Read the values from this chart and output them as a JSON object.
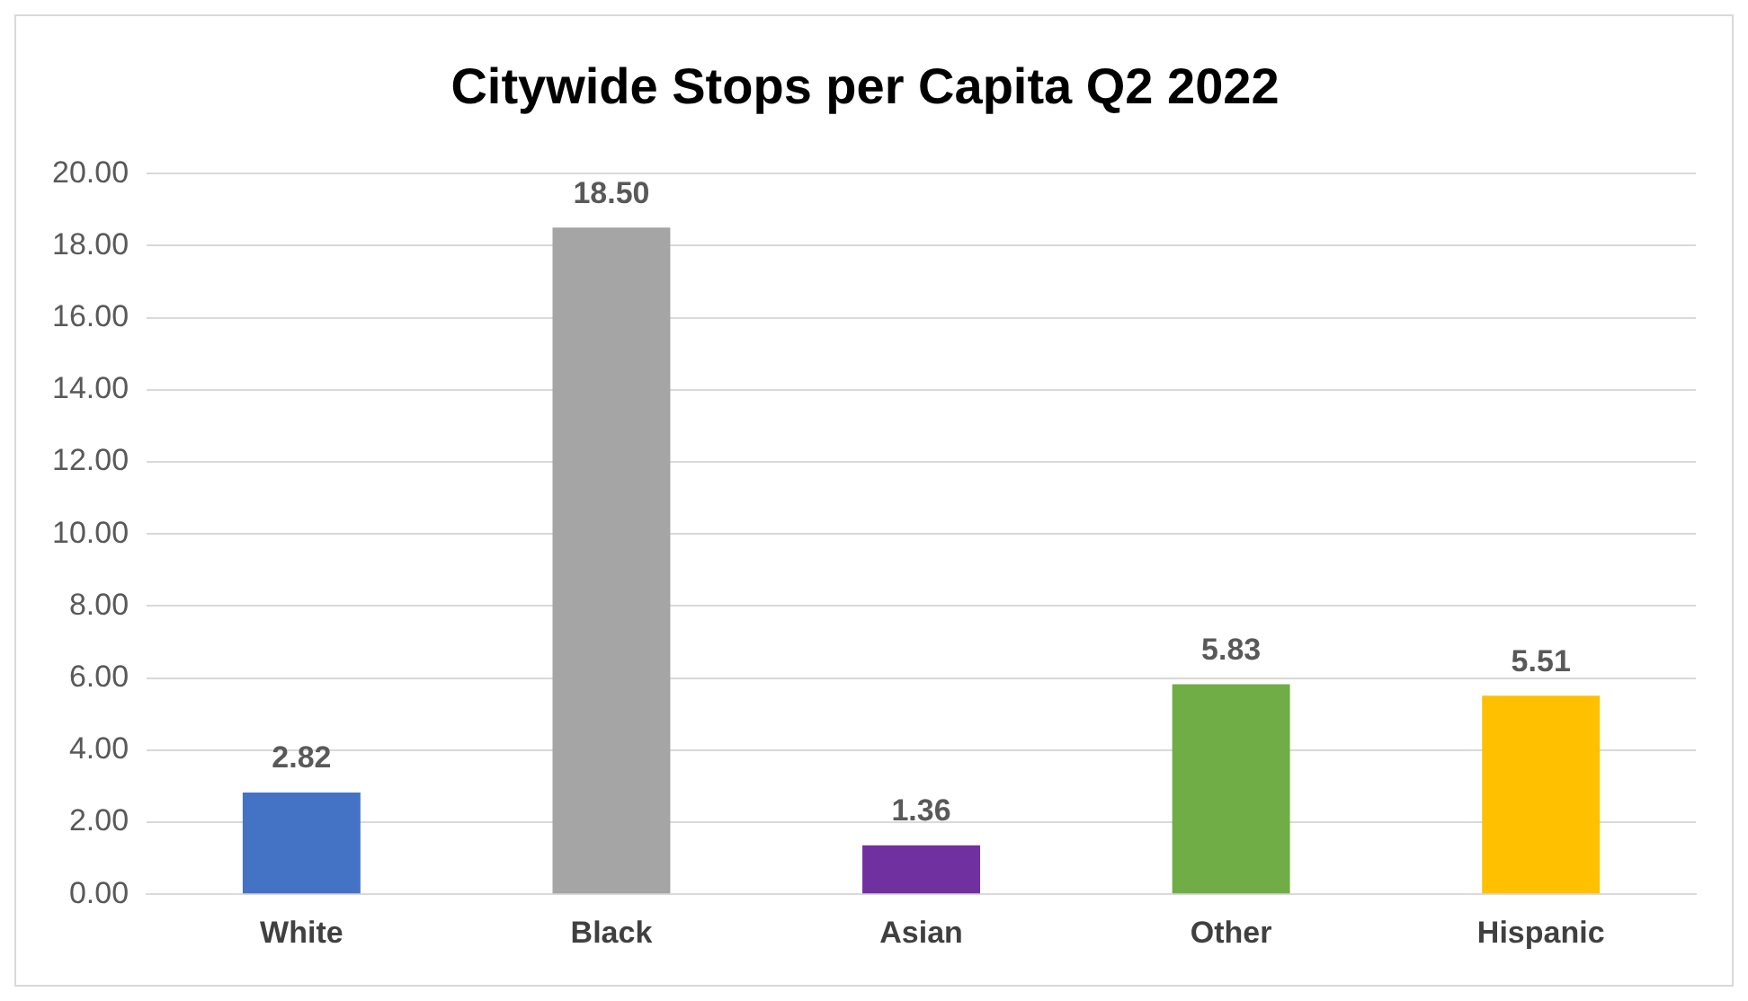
{
  "chart_data": {
    "type": "bar",
    "title": "Citywide Stops per Capita Q2 2022",
    "categories": [
      "White",
      "Black",
      "Asian",
      "Other",
      "Hispanic"
    ],
    "values": [
      2.82,
      18.5,
      1.36,
      5.83,
      5.51
    ],
    "colors": [
      "#4472c4",
      "#a5a5a5",
      "#7030a0",
      "#70ad47",
      "#ffc000"
    ],
    "ylim": [
      0,
      20
    ],
    "yticks": [
      {
        "value": 0,
        "label": "0.00"
      },
      {
        "value": 2,
        "label": "2.00"
      },
      {
        "value": 4,
        "label": "4.00"
      },
      {
        "value": 6,
        "label": "6.00"
      },
      {
        "value": 8,
        "label": "8.00"
      },
      {
        "value": 10,
        "label": "10.00"
      },
      {
        "value": 12,
        "label": "12.00"
      },
      {
        "value": 14,
        "label": "14.00"
      },
      {
        "value": 16,
        "label": "16.00"
      },
      {
        "value": 18,
        "label": "18.00"
      },
      {
        "value": 20,
        "label": "20.00"
      }
    ],
    "value_labels": [
      "2.82",
      "18.50",
      "1.36",
      "5.83",
      "5.51"
    ],
    "grid": "y",
    "legend": false
  }
}
